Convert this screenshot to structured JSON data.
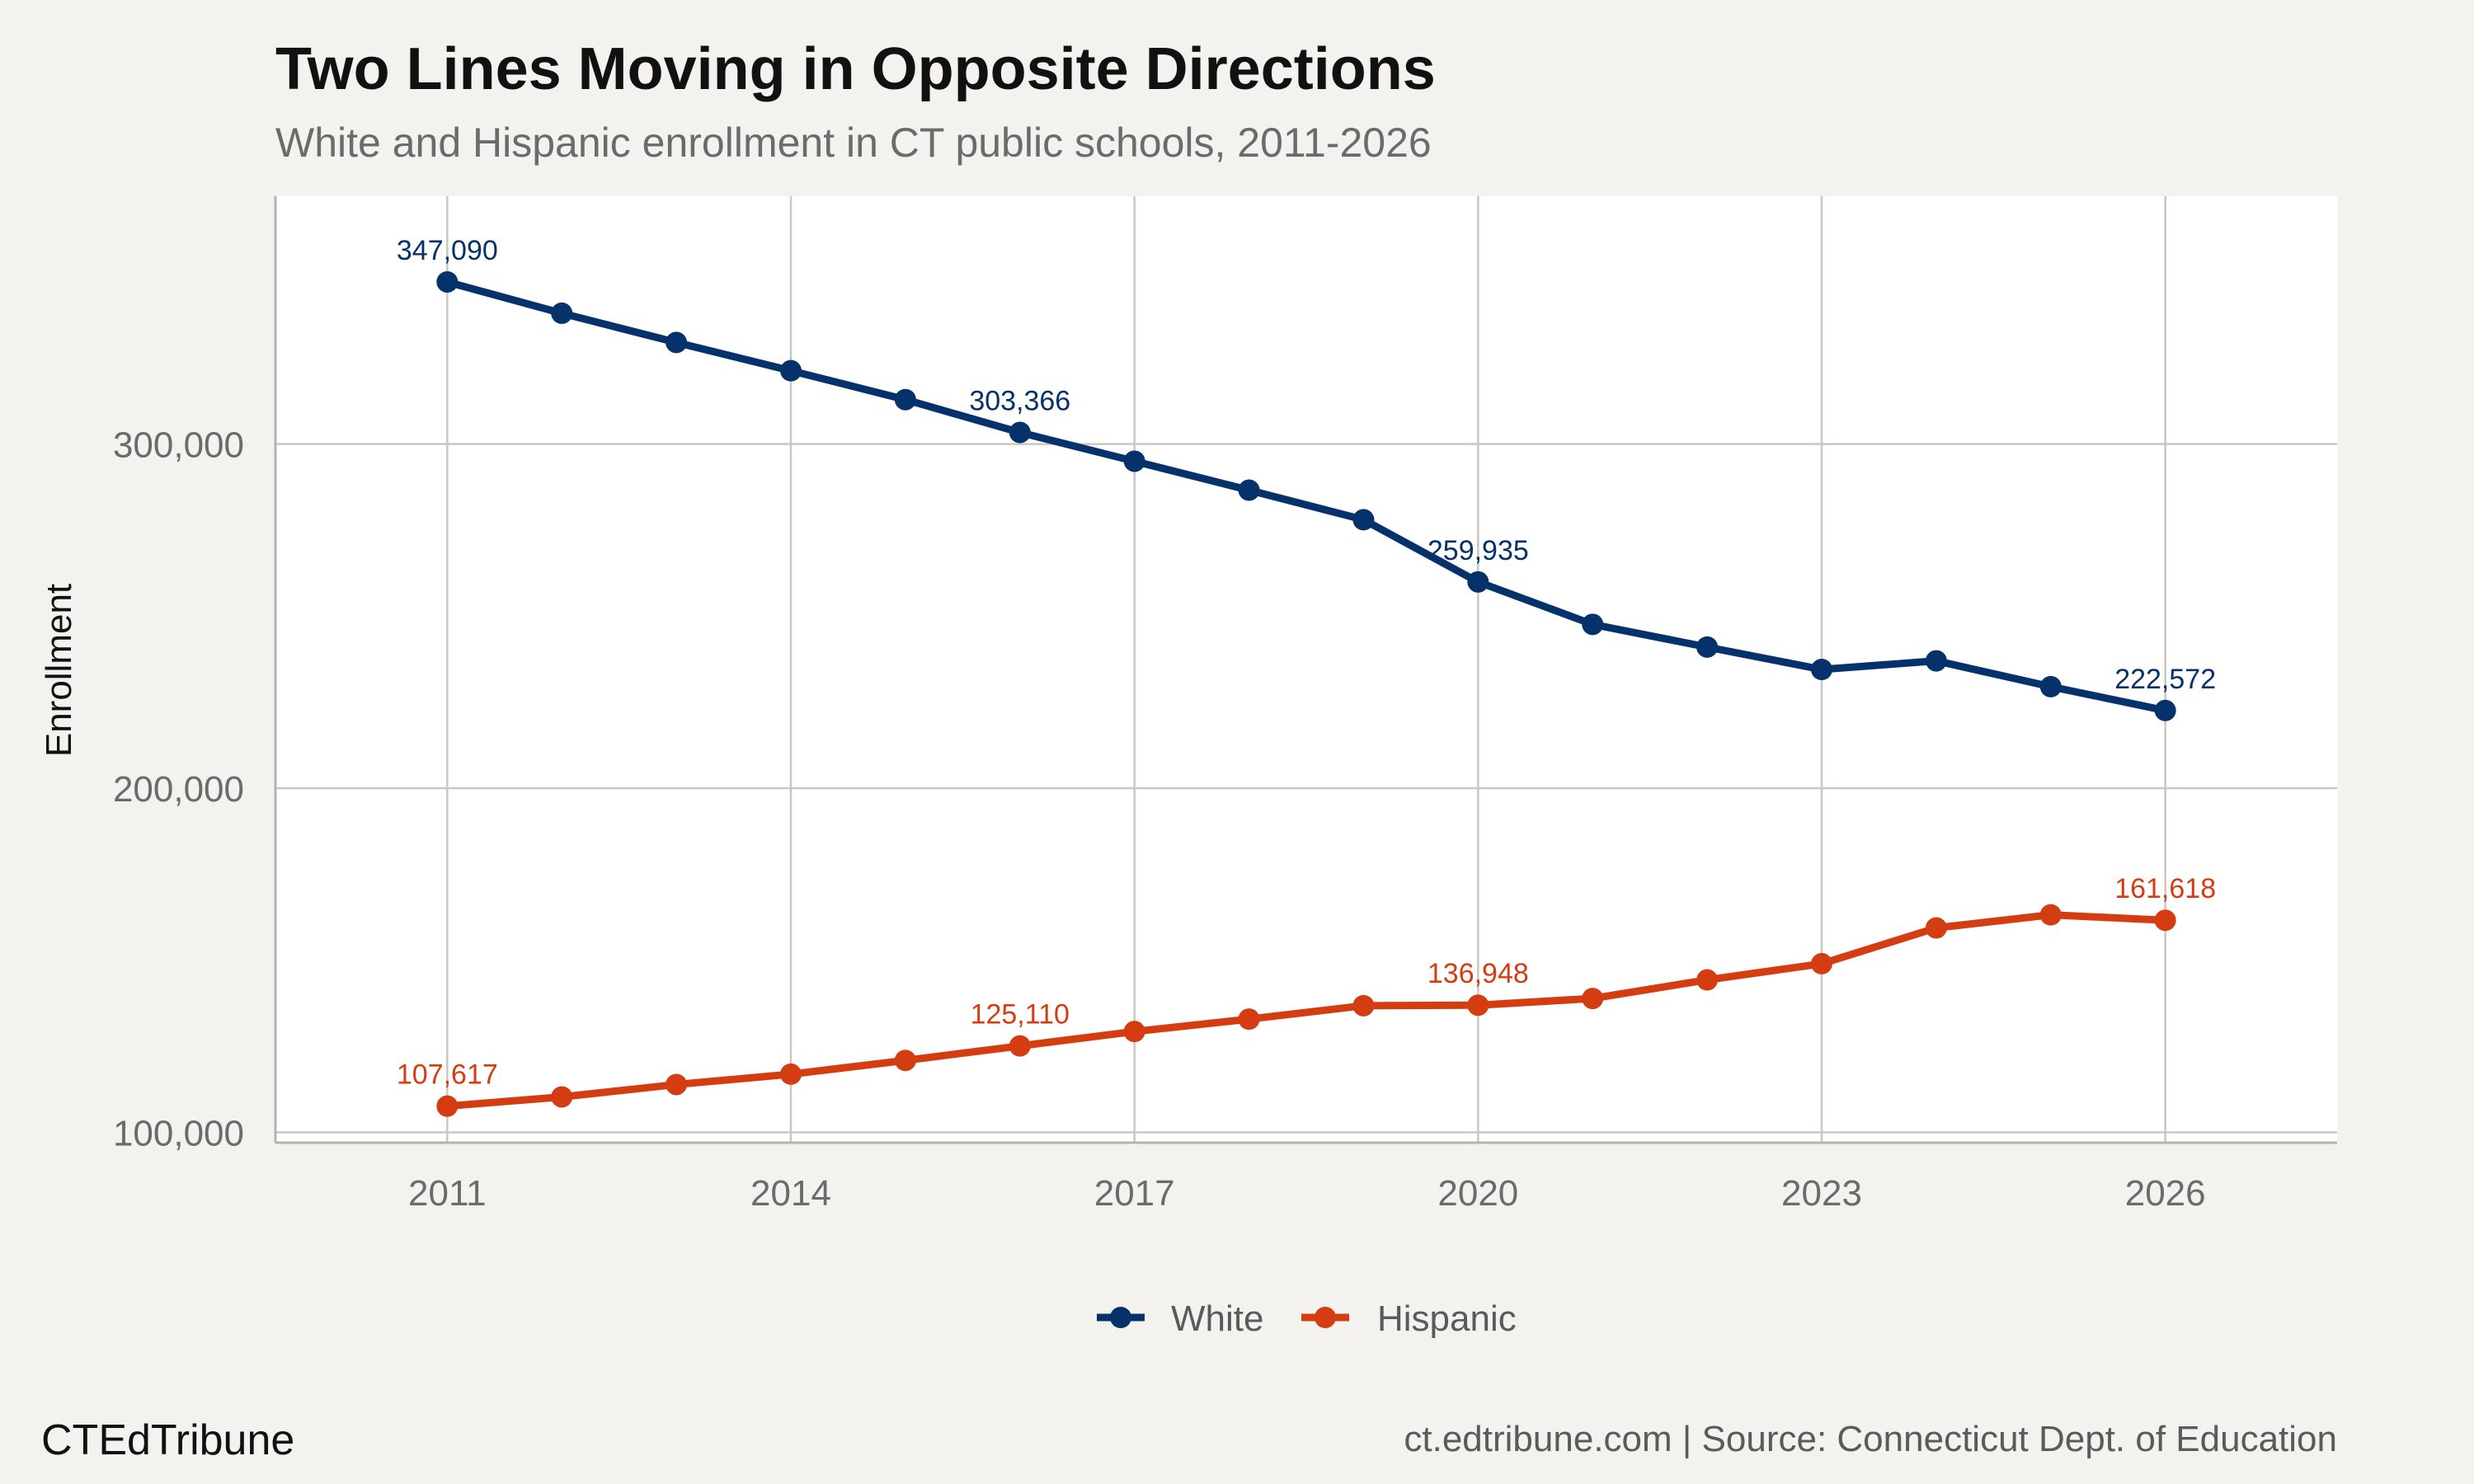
{
  "title": "Two Lines Moving in Opposite Directions",
  "subtitle": "White and Hispanic enrollment in CT public schools, 2011-2026",
  "brand": "CTEdTribune",
  "source": "ct.edtribune.com | Source: Connecticut Dept. of Education",
  "chart_data": {
    "type": "line",
    "title": "Two Lines Moving in Opposite Directions",
    "subtitle": "White and Hispanic enrollment in CT public schools, 2011-2026",
    "xlabel": "",
    "ylabel": "Enrollment",
    "x": [
      2011,
      2012,
      2013,
      2014,
      2015,
      2016,
      2017,
      2018,
      2019,
      2020,
      2021,
      2022,
      2023,
      2024,
      2025,
      2026
    ],
    "xlim": [
      2009.5,
      2027.5
    ],
    "ylim": [
      97000,
      372000
    ],
    "x_ticks": [
      2011,
      2014,
      2017,
      2020,
      2023,
      2026
    ],
    "x_tick_labels": [
      "2011",
      "2014",
      "2017",
      "2020",
      "2023",
      "2026"
    ],
    "y_ticks": [
      100000,
      200000,
      300000
    ],
    "y_tick_labels": [
      "100,000",
      "200,000",
      "300,000"
    ],
    "grid": true,
    "legend": "bottom",
    "series": [
      {
        "name": "White",
        "color": "#06326b",
        "values": [
          347090,
          338000,
          329500,
          321300,
          312900,
          303366,
          295000,
          286600,
          278000,
          259935,
          247600,
          241000,
          234500,
          237000,
          229500,
          222572
        ],
        "labels": [
          {
            "x": 2011,
            "text": "347,090"
          },
          {
            "x": 2016,
            "text": "303,366"
          },
          {
            "x": 2020,
            "text": "259,935"
          },
          {
            "x": 2026,
            "text": "222,572"
          }
        ]
      },
      {
        "name": "Hispanic",
        "color": "#d43d12",
        "values": [
          107617,
          110300,
          113900,
          116900,
          120900,
          125110,
          129300,
          132900,
          136800,
          136948,
          138900,
          144300,
          149000,
          159400,
          163200,
          161618
        ],
        "labels": [
          {
            "x": 2011,
            "text": "107,617"
          },
          {
            "x": 2016,
            "text": "125,110"
          },
          {
            "x": 2020,
            "text": "136,948"
          },
          {
            "x": 2026,
            "text": "161,618"
          }
        ]
      }
    ]
  }
}
